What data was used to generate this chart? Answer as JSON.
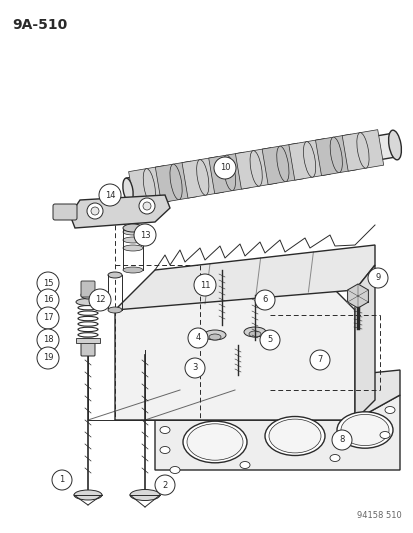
{
  "title_code": "9A-510",
  "part_code": "94158 510",
  "bg_color": "#ffffff",
  "line_color": "#2a2a2a",
  "fig_width": 4.14,
  "fig_height": 5.33,
  "dpi": 100
}
